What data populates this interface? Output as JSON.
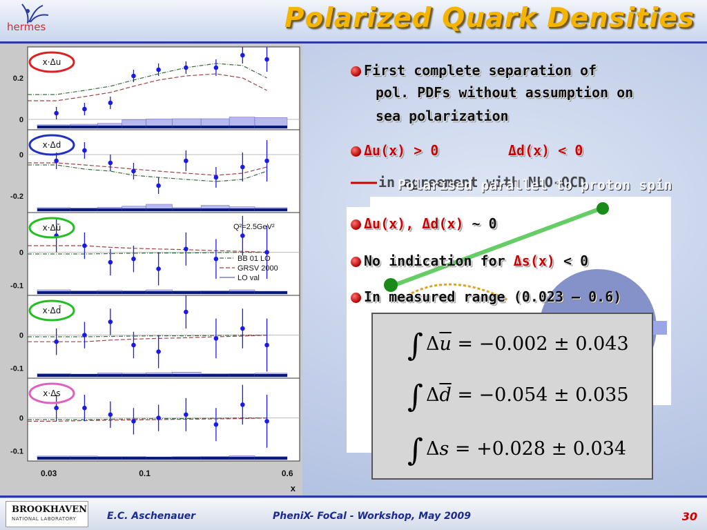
{
  "slide": {
    "title": "Polarized Quark Densities",
    "logo": "hermes",
    "footer_author": "E.C. Aschenauer",
    "footer_event": "PheniX- FoCal - Workshop, May 2009",
    "page_number": "30",
    "lab_name_1": "BROOKHAVEN",
    "lab_name_2": "NATIONAL LABORATORY"
  },
  "bullets": {
    "b1_line1": "First complete separation of",
    "b1_line2": "pol. PDFs without assumption on",
    "b1_line3": "sea polarization",
    "b2_a": "Δu(x) > 0",
    "b2_b": "Δd(x) < 0",
    "b3_a": "Δu(x), Δd(x)",
    "b3_b": " ~ 0",
    "b4_a": "No indication for ",
    "b4_b": "Δs(x)",
    "b4_c": " < 0",
    "b5": "In measured range (0.023 – 0.6)",
    "overlap_text_1": "in agreement with NLO-QCD",
    "overlap_text_2": "Polarised parallel to proton spin"
  },
  "equations": {
    "eq1_var": "u",
    "eq1_rhs": " = −0.002 ± 0.043",
    "eq2_var": "d",
    "eq2_rhs": " = −0.054 ± 0.035",
    "eq3_var": "s",
    "eq3_rhs": " = +0.028 ± 0.034",
    "delta": "Δ",
    "int": "∫"
  },
  "colors": {
    "title": "#f4b400",
    "points": "#1a1ae6",
    "bar_dark": "#0a1a7a",
    "bar_light": "#b8b8f0",
    "circle_red": "#e02020",
    "circle_blue": "#2030c0",
    "circle_green": "#20c020",
    "circle_pink": "#e060c0"
  },
  "chart_data": {
    "type": "scatter",
    "xscale": "log",
    "xlim": [
      0.023,
      0.7
    ],
    "xticks": [
      "0.03",
      "0.1",
      "0.6"
    ],
    "xlabel": "x",
    "x": [
      0.033,
      0.047,
      0.065,
      0.087,
      0.119,
      0.168,
      0.245,
      0.342,
      0.464
    ],
    "annotation": "Q²=2.5GeV²",
    "legend": [
      "BB 01 LO",
      "GRSV 2000",
      "LO val"
    ],
    "panels": [
      {
        "label": "x·Δu",
        "ylim": [
          -0.05,
          0.35
        ],
        "yticks": [
          "0.2",
          "0"
        ],
        "ytick_vals": [
          0.2,
          0
        ],
        "y": [
          0.03,
          0.05,
          0.08,
          0.21,
          0.24,
          0.25,
          0.25,
          0.31,
          0.29
        ],
        "err": [
          0.03,
          0.03,
          0.03,
          0.03,
          0.03,
          0.03,
          0.04,
          0.04,
          0.06
        ],
        "circle": "red",
        "curve_bb": [
          0.12,
          0.14,
          0.16,
          0.19,
          0.22,
          0.25,
          0.27,
          0.26,
          0.2
        ],
        "curve_grsv": [
          0.09,
          0.11,
          0.13,
          0.16,
          0.19,
          0.21,
          0.22,
          0.2,
          0.14
        ]
      },
      {
        "label": "x·Δd",
        "ylim": [
          -0.28,
          0.12
        ],
        "yticks": [
          "0",
          "-0.2"
        ],
        "ytick_vals": [
          0,
          -0.2
        ],
        "y": [
          -0.03,
          0.02,
          -0.04,
          -0.08,
          -0.15,
          -0.03,
          -0.11,
          -0.06,
          -0.03
        ],
        "err": [
          0.04,
          0.04,
          0.04,
          0.04,
          0.04,
          0.05,
          0.05,
          0.07,
          0.1
        ],
        "circle": "blue",
        "curve_bb": [
          -0.05,
          -0.07,
          -0.08,
          -0.1,
          -0.11,
          -0.12,
          -0.13,
          -0.12,
          -0.08
        ],
        "curve_grsv": [
          -0.04,
          -0.05,
          -0.06,
          -0.07,
          -0.08,
          -0.09,
          -0.1,
          -0.09,
          -0.06
        ]
      },
      {
        "label": "x·Δū",
        "ylim": [
          -0.13,
          0.12
        ],
        "yticks": [
          "0",
          "-0.1"
        ],
        "ytick_vals": [
          0,
          -0.1
        ],
        "y": [
          0.05,
          0.02,
          -0.03,
          -0.02,
          -0.05,
          0.01,
          -0.02,
          0.05,
          0.0
        ],
        "err": [
          0.05,
          0.04,
          0.04,
          0.04,
          0.05,
          0.05,
          0.06,
          0.06,
          0.08
        ],
        "circle": "green",
        "curve_bb": [
          -0.005,
          -0.005,
          -0.004,
          -0.003,
          -0.002,
          -0.002,
          -0.001,
          0.0,
          0.0
        ],
        "curve_grsv": [
          0.02,
          0.02,
          0.015,
          0.012,
          0.01,
          0.008,
          0.005,
          0.003,
          0.0
        ]
      },
      {
        "label": "x·Δd̄",
        "ylim": [
          -0.13,
          0.12
        ],
        "yticks": [
          "0",
          "-0.1"
        ],
        "ytick_vals": [
          0,
          -0.1
        ],
        "y": [
          -0.02,
          0.0,
          0.04,
          -0.03,
          -0.05,
          0.07,
          -0.01,
          0.02,
          -0.03
        ],
        "err": [
          0.04,
          0.04,
          0.04,
          0.04,
          0.05,
          0.05,
          0.06,
          0.06,
          0.08
        ],
        "circle": "green",
        "curve_bb": [
          -0.005,
          -0.005,
          -0.004,
          -0.003,
          -0.002,
          -0.002,
          -0.001,
          0.0,
          0.0
        ],
        "curve_grsv": [
          -0.02,
          -0.02,
          -0.015,
          -0.012,
          -0.01,
          -0.008,
          -0.005,
          -0.003,
          0.0
        ]
      },
      {
        "label": "x·Δs",
        "ylim": [
          -0.13,
          0.12
        ],
        "yticks": [
          "0",
          "-0.1"
        ],
        "ytick_vals": [
          0,
          -0.1
        ],
        "y": [
          0.03,
          0.03,
          0.01,
          -0.01,
          0.0,
          0.01,
          -0.02,
          0.04,
          -0.01
        ],
        "err": [
          0.04,
          0.04,
          0.04,
          0.04,
          0.04,
          0.05,
          0.05,
          0.06,
          0.08
        ],
        "circle": "pink",
        "curve_bb": [
          -0.005,
          -0.005,
          -0.004,
          -0.003,
          -0.002,
          -0.002,
          -0.001,
          0.0,
          0.0
        ],
        "curve_grsv": [
          -0.01,
          -0.008,
          -0.007,
          -0.006,
          -0.005,
          -0.004,
          -0.003,
          -0.002,
          0.0
        ]
      }
    ]
  }
}
